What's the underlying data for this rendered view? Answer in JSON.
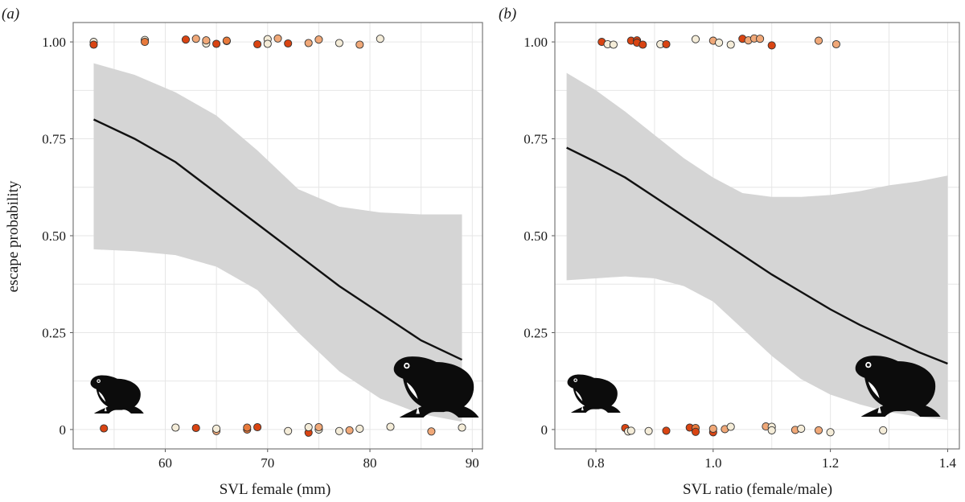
{
  "chart_data": [
    {
      "type": "scatter",
      "panel_label": "(a)",
      "xlabel": "SVL female (mm)",
      "ylabel": "escape probability",
      "xlim": [
        51,
        91
      ],
      "ylim": [
        -0.05,
        1.05
      ],
      "x_ticks": [
        60,
        70,
        80,
        90
      ],
      "x_tick_labels": [
        "60",
        "70",
        "80",
        "90"
      ],
      "y_ticks": [
        0,
        0.25,
        0.5,
        0.75,
        1.0
      ],
      "y_tick_labels": [
        "0",
        "0.25",
        "0.50",
        "0.75",
        "1.00"
      ],
      "grid": true,
      "fit": {
        "x": [
          53,
          57,
          61,
          65,
          69,
          73,
          77,
          81,
          85,
          89
        ],
        "y": [
          0.8,
          0.75,
          0.69,
          0.61,
          0.53,
          0.45,
          0.37,
          0.3,
          0.23,
          0.18
        ],
        "ci_lower": [
          0.465,
          0.46,
          0.45,
          0.42,
          0.36,
          0.25,
          0.15,
          0.08,
          0.04,
          0.02
        ],
        "ci_upper": [
          0.945,
          0.915,
          0.87,
          0.81,
          0.72,
          0.62,
          0.575,
          0.56,
          0.555,
          0.555
        ]
      },
      "points": [
        {
          "x": 53,
          "y": 1.0,
          "c": "#f4ecd8"
        },
        {
          "x": 53,
          "y": 0.993,
          "c": "#d94412"
        },
        {
          "x": 58,
          "y": 1.005,
          "c": "#f4ecd8"
        },
        {
          "x": 58,
          "y": 1.0,
          "c": "#e87a3c"
        },
        {
          "x": 62,
          "y": 1.006,
          "c": "#d94412"
        },
        {
          "x": 63,
          "y": 1.008,
          "c": "#f0a878"
        },
        {
          "x": 64,
          "y": 0.996,
          "c": "#f4ecd8"
        },
        {
          "x": 64,
          "y": 1.004,
          "c": "#f0a878"
        },
        {
          "x": 65,
          "y": 0.995,
          "c": "#d94412"
        },
        {
          "x": 66,
          "y": 1.002,
          "c": "#f4ecd8"
        },
        {
          "x": 66,
          "y": 1.003,
          "c": "#e87a3c"
        },
        {
          "x": 69,
          "y": 0.994,
          "c": "#d94412"
        },
        {
          "x": 70,
          "y": 1.007,
          "c": "#f4ecd8"
        },
        {
          "x": 70,
          "y": 0.995,
          "c": "#f4ecd8"
        },
        {
          "x": 71,
          "y": 1.009,
          "c": "#f0a878"
        },
        {
          "x": 72,
          "y": 0.996,
          "c": "#d94412"
        },
        {
          "x": 74,
          "y": 0.997,
          "c": "#f0a878"
        },
        {
          "x": 75,
          "y": 1.006,
          "c": "#f0a878"
        },
        {
          "x": 77,
          "y": 0.997,
          "c": "#f4ecd8"
        },
        {
          "x": 79,
          "y": 0.993,
          "c": "#f0a878"
        },
        {
          "x": 81,
          "y": 1.008,
          "c": "#f4ecd8"
        },
        {
          "x": 54,
          "y": 0.003,
          "c": "#d94412"
        },
        {
          "x": 61,
          "y": 0.005,
          "c": "#f4ecd8"
        },
        {
          "x": 63,
          "y": 0.004,
          "c": "#d94412"
        },
        {
          "x": 65,
          "y": -0.004,
          "c": "#f0a878"
        },
        {
          "x": 65,
          "y": 0.002,
          "c": "#f4ecd8"
        },
        {
          "x": 68,
          "y": 0.0,
          "c": "#e87a3c"
        },
        {
          "x": 68,
          "y": 0.005,
          "c": "#e87a3c"
        },
        {
          "x": 69,
          "y": 0.006,
          "c": "#d94412"
        },
        {
          "x": 72,
          "y": -0.004,
          "c": "#f4ecd8"
        },
        {
          "x": 74,
          "y": -0.008,
          "c": "#d94412"
        },
        {
          "x": 74,
          "y": 0.006,
          "c": "#f4ecd8"
        },
        {
          "x": 75,
          "y": 0.0,
          "c": "#f4ecd8"
        },
        {
          "x": 75,
          "y": 0.006,
          "c": "#f0a878"
        },
        {
          "x": 77,
          "y": -0.004,
          "c": "#f4ecd8"
        },
        {
          "x": 78,
          "y": -0.002,
          "c": "#f0a878"
        },
        {
          "x": 79,
          "y": 0.002,
          "c": "#f4ecd8"
        },
        {
          "x": 82,
          "y": 0.007,
          "c": "#f4ecd8"
        },
        {
          "x": 86,
          "y": -0.005,
          "c": "#f0a878"
        },
        {
          "x": 89,
          "y": 0.005,
          "c": "#f4ecd8"
        }
      ]
    },
    {
      "type": "scatter",
      "panel_label": "(b)",
      "xlabel": "SVL ratio (female/male)",
      "ylabel": "",
      "xlim": [
        0.73,
        1.42
      ],
      "ylim": [
        -0.05,
        1.05
      ],
      "x_ticks": [
        0.8,
        1.0,
        1.2,
        1.4
      ],
      "x_tick_labels": [
        "0.8",
        "1.0",
        "1.2",
        "1.4"
      ],
      "y_ticks": [
        0,
        0.25,
        0.5,
        0.75,
        1.0
      ],
      "y_tick_labels": [
        "0",
        "0.25",
        "0.50",
        "0.75",
        "1.00"
      ],
      "grid": true,
      "fit": {
        "x": [
          0.75,
          0.8,
          0.85,
          0.9,
          0.95,
          1.0,
          1.05,
          1.1,
          1.15,
          1.2,
          1.25,
          1.3,
          1.35,
          1.4
        ],
        "y": [
          0.727,
          0.69,
          0.65,
          0.6,
          0.55,
          0.5,
          0.45,
          0.4,
          0.355,
          0.31,
          0.27,
          0.235,
          0.2,
          0.17
        ],
        "ci_lower": [
          0.385,
          0.39,
          0.395,
          0.39,
          0.37,
          0.33,
          0.26,
          0.19,
          0.13,
          0.09,
          0.065,
          0.045,
          0.033,
          0.025
        ],
        "ci_upper": [
          0.92,
          0.875,
          0.82,
          0.76,
          0.7,
          0.65,
          0.61,
          0.6,
          0.6,
          0.605,
          0.615,
          0.63,
          0.64,
          0.655
        ]
      },
      "points": [
        {
          "x": 0.81,
          "y": 1.0,
          "c": "#d94412"
        },
        {
          "x": 0.82,
          "y": 0.994,
          "c": "#f4ecd8"
        },
        {
          "x": 0.83,
          "y": 0.993,
          "c": "#f4ecd8"
        },
        {
          "x": 0.86,
          "y": 1.003,
          "c": "#d94412"
        },
        {
          "x": 0.87,
          "y": 1.004,
          "c": "#d94412"
        },
        {
          "x": 0.87,
          "y": 0.998,
          "c": "#d94412"
        },
        {
          "x": 0.88,
          "y": 0.993,
          "c": "#d94412"
        },
        {
          "x": 0.91,
          "y": 0.994,
          "c": "#f4ecd8"
        },
        {
          "x": 0.92,
          "y": 0.994,
          "c": "#d94412"
        },
        {
          "x": 0.97,
          "y": 1.007,
          "c": "#f4ecd8"
        },
        {
          "x": 1.0,
          "y": 1.003,
          "c": "#f0a878"
        },
        {
          "x": 1.01,
          "y": 0.998,
          "c": "#f4ecd8"
        },
        {
          "x": 1.03,
          "y": 0.993,
          "c": "#f4ecd8"
        },
        {
          "x": 1.05,
          "y": 1.008,
          "c": "#d94412"
        },
        {
          "x": 1.06,
          "y": 1.004,
          "c": "#f0a878"
        },
        {
          "x": 1.07,
          "y": 1.009,
          "c": "#f0a878"
        },
        {
          "x": 1.08,
          "y": 1.008,
          "c": "#f0a878"
        },
        {
          "x": 1.1,
          "y": 0.991,
          "c": "#d94412"
        },
        {
          "x": 1.18,
          "y": 1.003,
          "c": "#f0a878"
        },
        {
          "x": 1.21,
          "y": 0.994,
          "c": "#f0a878"
        },
        {
          "x": 0.85,
          "y": 0.004,
          "c": "#d94412"
        },
        {
          "x": 0.855,
          "y": -0.005,
          "c": "#f4ecd8"
        },
        {
          "x": 0.86,
          "y": -0.003,
          "c": "#f4ecd8"
        },
        {
          "x": 0.89,
          "y": -0.004,
          "c": "#f4ecd8"
        },
        {
          "x": 0.92,
          "y": -0.003,
          "c": "#d94412"
        },
        {
          "x": 0.96,
          "y": 0.005,
          "c": "#d94412"
        },
        {
          "x": 0.97,
          "y": 0.004,
          "c": "#e87a3c"
        },
        {
          "x": 0.97,
          "y": -0.006,
          "c": "#d94412"
        },
        {
          "x": 1.0,
          "y": -0.007,
          "c": "#d94412"
        },
        {
          "x": 1.0,
          "y": 0.002,
          "c": "#f0a878"
        },
        {
          "x": 1.02,
          "y": 0.001,
          "c": "#f0a878"
        },
        {
          "x": 1.03,
          "y": 0.007,
          "c": "#f4ecd8"
        },
        {
          "x": 1.09,
          "y": 0.008,
          "c": "#f0a878"
        },
        {
          "x": 1.1,
          "y": 0.007,
          "c": "#f4ecd8"
        },
        {
          "x": 1.1,
          "y": -0.002,
          "c": "#f4ecd8"
        },
        {
          "x": 1.14,
          "y": -0.001,
          "c": "#f0a878"
        },
        {
          "x": 1.15,
          "y": 0.002,
          "c": "#f4ecd8"
        },
        {
          "x": 1.18,
          "y": -0.002,
          "c": "#f0a878"
        },
        {
          "x": 1.2,
          "y": -0.007,
          "c": "#f4ecd8"
        },
        {
          "x": 1.29,
          "y": -0.002,
          "c": "#f4ecd8"
        }
      ]
    }
  ]
}
